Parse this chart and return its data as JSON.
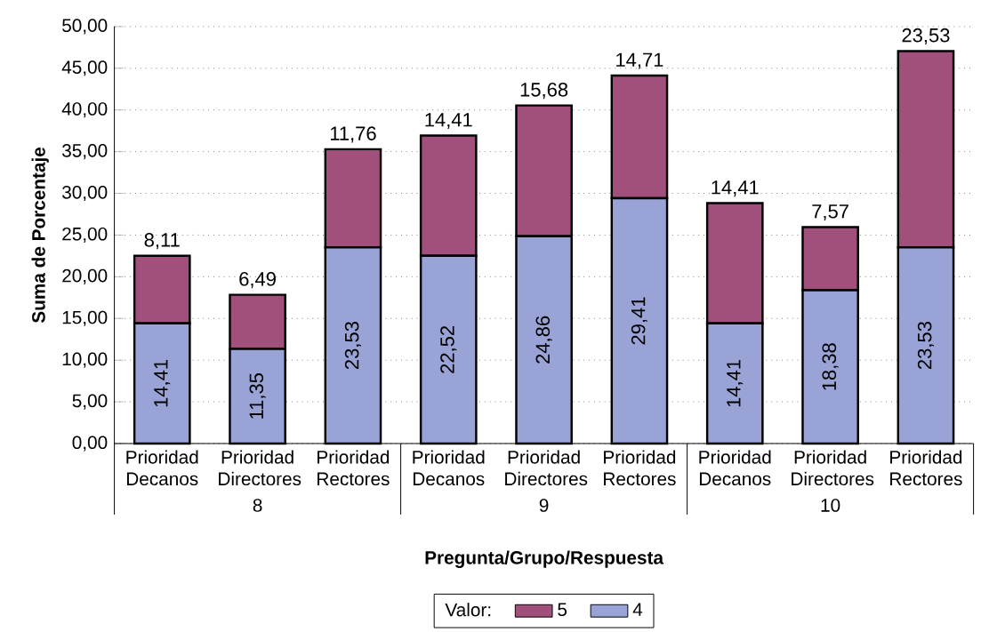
{
  "chart_data": {
    "type": "bar",
    "stacked": true,
    "xlabel": "Pregunta/Grupo/Respuesta",
    "ylabel": "Suma de Porcentaje",
    "legend_title": "Valor:",
    "legend": "bottom",
    "grid": "y",
    "categories": [
      "Prioridad Decanos",
      "Prioridad Directores",
      "Prioridad Rectores",
      "Prioridad Decanos",
      "Prioridad Directores",
      "Prioridad Rectores",
      "Prioridad Decanos",
      "Prioridad Directores",
      "Prioridad Rectores"
    ],
    "annotations": [
      "8",
      "9",
      "10"
    ],
    "ylim": [
      0,
      50
    ],
    "yticks": [
      {
        "value": 0,
        "label": "0,00"
      },
      {
        "value": 5,
        "label": "5,00"
      },
      {
        "value": 10,
        "label": "10,00"
      },
      {
        "value": 15,
        "label": "15,00"
      },
      {
        "value": 20,
        "label": "20,00"
      },
      {
        "value": 25,
        "label": "25,00"
      },
      {
        "value": 30,
        "label": "30,00"
      },
      {
        "value": 35,
        "label": "35,00"
      },
      {
        "value": 40,
        "label": "40,00"
      },
      {
        "value": 45,
        "label": "45,00"
      },
      {
        "value": 50,
        "label": "50,00"
      }
    ],
    "series": [
      {
        "name": "4",
        "color": "#99a3d6",
        "values": [
          14.41,
          11.35,
          23.53,
          22.52,
          24.86,
          29.41,
          14.41,
          18.38,
          23.53
        ],
        "value_labels": [
          "14,41",
          "11,35",
          "23,53",
          "22,52",
          "24,86",
          "29,41",
          "14,41",
          "18,38",
          "23,53"
        ]
      },
      {
        "name": "5",
        "color": "#a0507a",
        "values": [
          8.11,
          6.49,
          11.76,
          14.41,
          15.68,
          14.71,
          14.41,
          7.57,
          23.53
        ],
        "value_labels": [
          "8,11",
          "6,49",
          "11,76",
          "14,41",
          "15,68",
          "14,71",
          "14,41",
          "7,57",
          "23,53"
        ]
      }
    ]
  }
}
